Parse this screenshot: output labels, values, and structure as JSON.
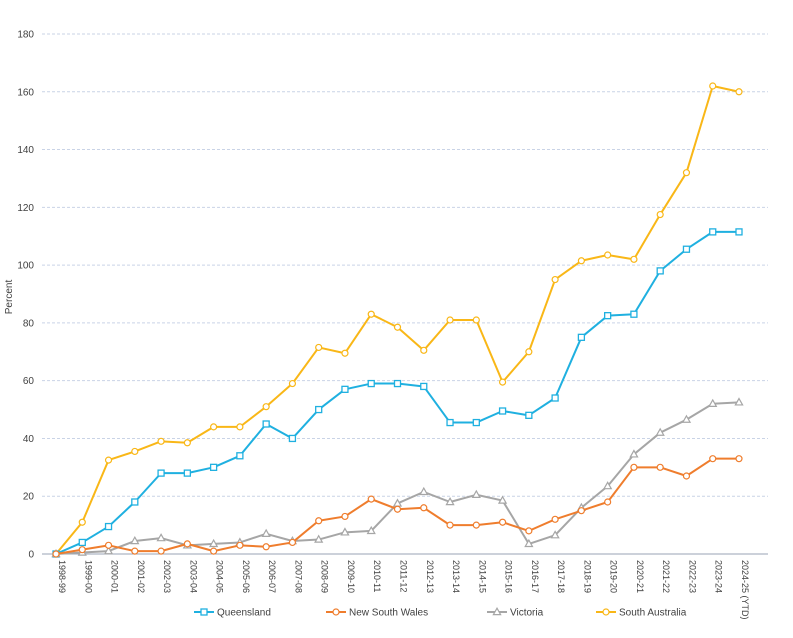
{
  "chart_data": {
    "type": "line",
    "ylabel": "Percent",
    "xlabel": "",
    "ylim": [
      0,
      180
    ],
    "yticks": [
      "0",
      "20",
      "40",
      "60",
      "80",
      "100",
      "120",
      "140",
      "160",
      "180"
    ],
    "grid": true,
    "legend_position": "bottom",
    "categories": [
      "1998-99",
      "1999-00",
      "2000-01",
      "2001-02",
      "2002-03",
      "2003-04",
      "2004-05",
      "2005-06",
      "2006-07",
      "2007-08",
      "2008-09",
      "2009-10",
      "2010-11",
      "2011-12",
      "2012-13",
      "2013-14",
      "2014-15",
      "2015-16",
      "2016-17",
      "2017-18",
      "2018-19",
      "2019-20",
      "2020-21",
      "2021-22",
      "2022-23",
      "2023-24",
      "2024-25 (YTD)"
    ],
    "series": [
      {
        "name": "Queensland",
        "color": "#1fb0e0",
        "marker": "square",
        "values": [
          0,
          4,
          9.5,
          18,
          28,
          28,
          30,
          34,
          45,
          40,
          50,
          57,
          59,
          59,
          58,
          45.5,
          45.5,
          49.5,
          48,
          54,
          75,
          82.5,
          83,
          98,
          105.5,
          111.5,
          111.5
        ]
      },
      {
        "name": "New South Wales",
        "color": "#ef7d2d",
        "marker": "circle",
        "values": [
          0,
          1.5,
          3,
          1,
          1,
          3.5,
          1,
          3,
          2.5,
          4,
          11.5,
          13,
          19,
          15.5,
          16,
          10,
          10,
          11,
          8,
          12,
          15,
          18,
          30,
          30,
          27,
          33,
          33
        ]
      },
      {
        "name": "Victoria",
        "color": "#a6a6a6",
        "marker": "triangle",
        "values": [
          0,
          0.5,
          1,
          4.5,
          5.5,
          3,
          3.5,
          4,
          7,
          4.5,
          5,
          7.5,
          8,
          17.5,
          21.5,
          18,
          20.5,
          18.5,
          3.5,
          6.5,
          16,
          23.5,
          34.5,
          42,
          46.5,
          52,
          52.5
        ]
      },
      {
        "name": "South Australia",
        "color": "#f9b717",
        "marker": "circle",
        "values": [
          0,
          11,
          32.5,
          35.5,
          39,
          38.5,
          44,
          44,
          51,
          59,
          71.5,
          69.5,
          83,
          78.5,
          70.5,
          81,
          81,
          59.5,
          70,
          95,
          101.5,
          103.5,
          102,
          117.5,
          132,
          162,
          160
        ]
      }
    ]
  }
}
